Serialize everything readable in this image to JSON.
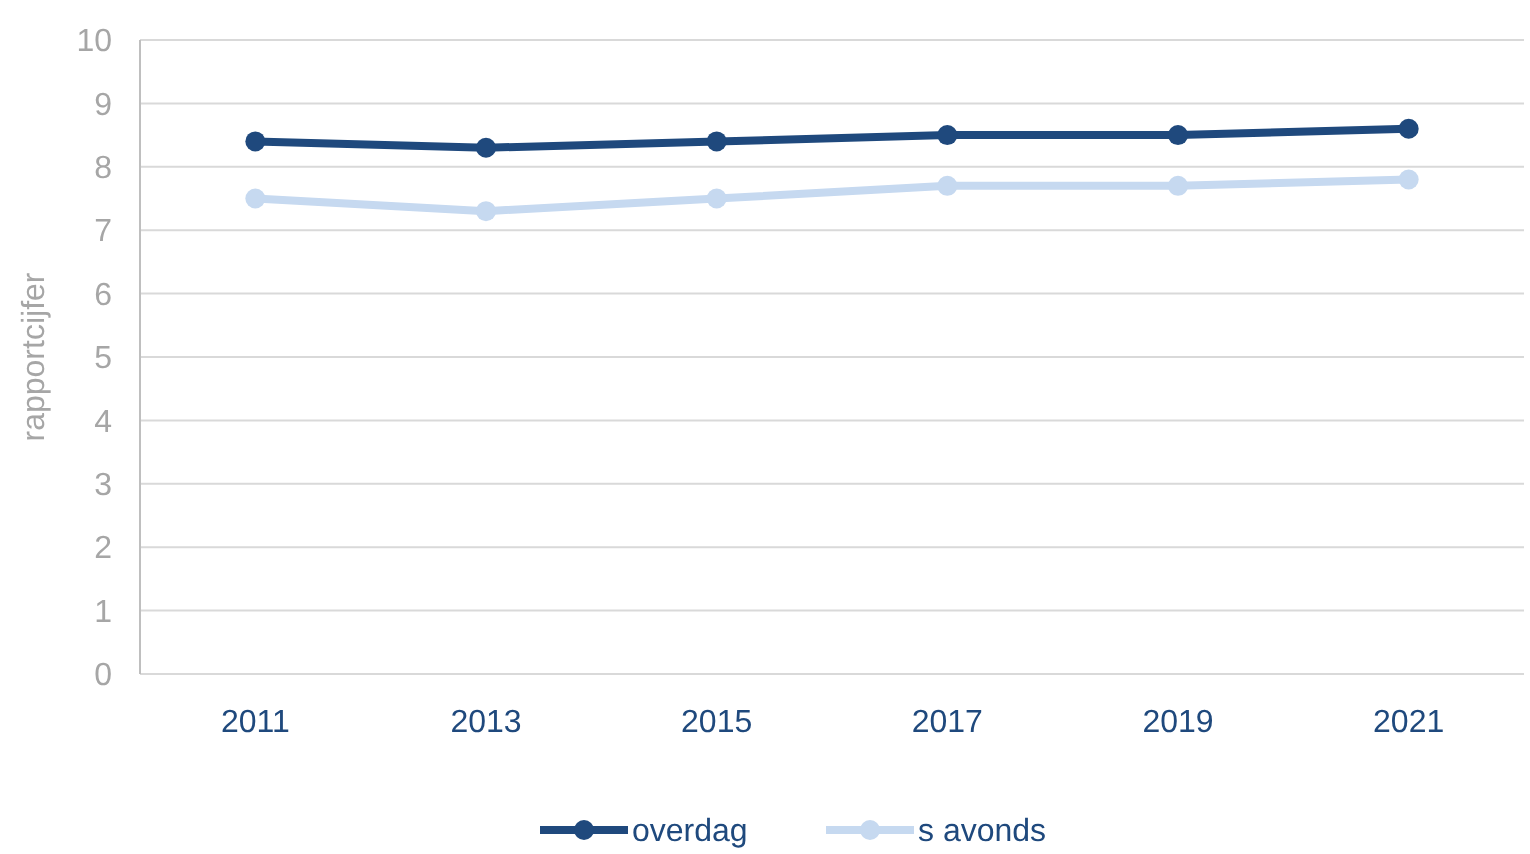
{
  "chart_data": {
    "type": "line",
    "ylabel": "rapportcijfer",
    "categories": [
      "2011",
      "2013",
      "2015",
      "2017",
      "2019",
      "2021"
    ],
    "series": [
      {
        "name": "overdag",
        "color": "#1f497d",
        "values": [
          8.4,
          8.3,
          8.4,
          8.5,
          8.5,
          8.6
        ]
      },
      {
        "name": "s avonds",
        "color": "#c6d9f0",
        "values": [
          7.5,
          7.3,
          7.5,
          7.7,
          7.7,
          7.8
        ]
      }
    ],
    "ylim": [
      0,
      10
    ],
    "yticks": [
      0,
      1,
      2,
      3,
      4,
      5,
      6,
      7,
      8,
      9,
      10
    ],
    "grid": "y",
    "legend": "bottom",
    "marker": "circle",
    "line_style": "solid"
  }
}
